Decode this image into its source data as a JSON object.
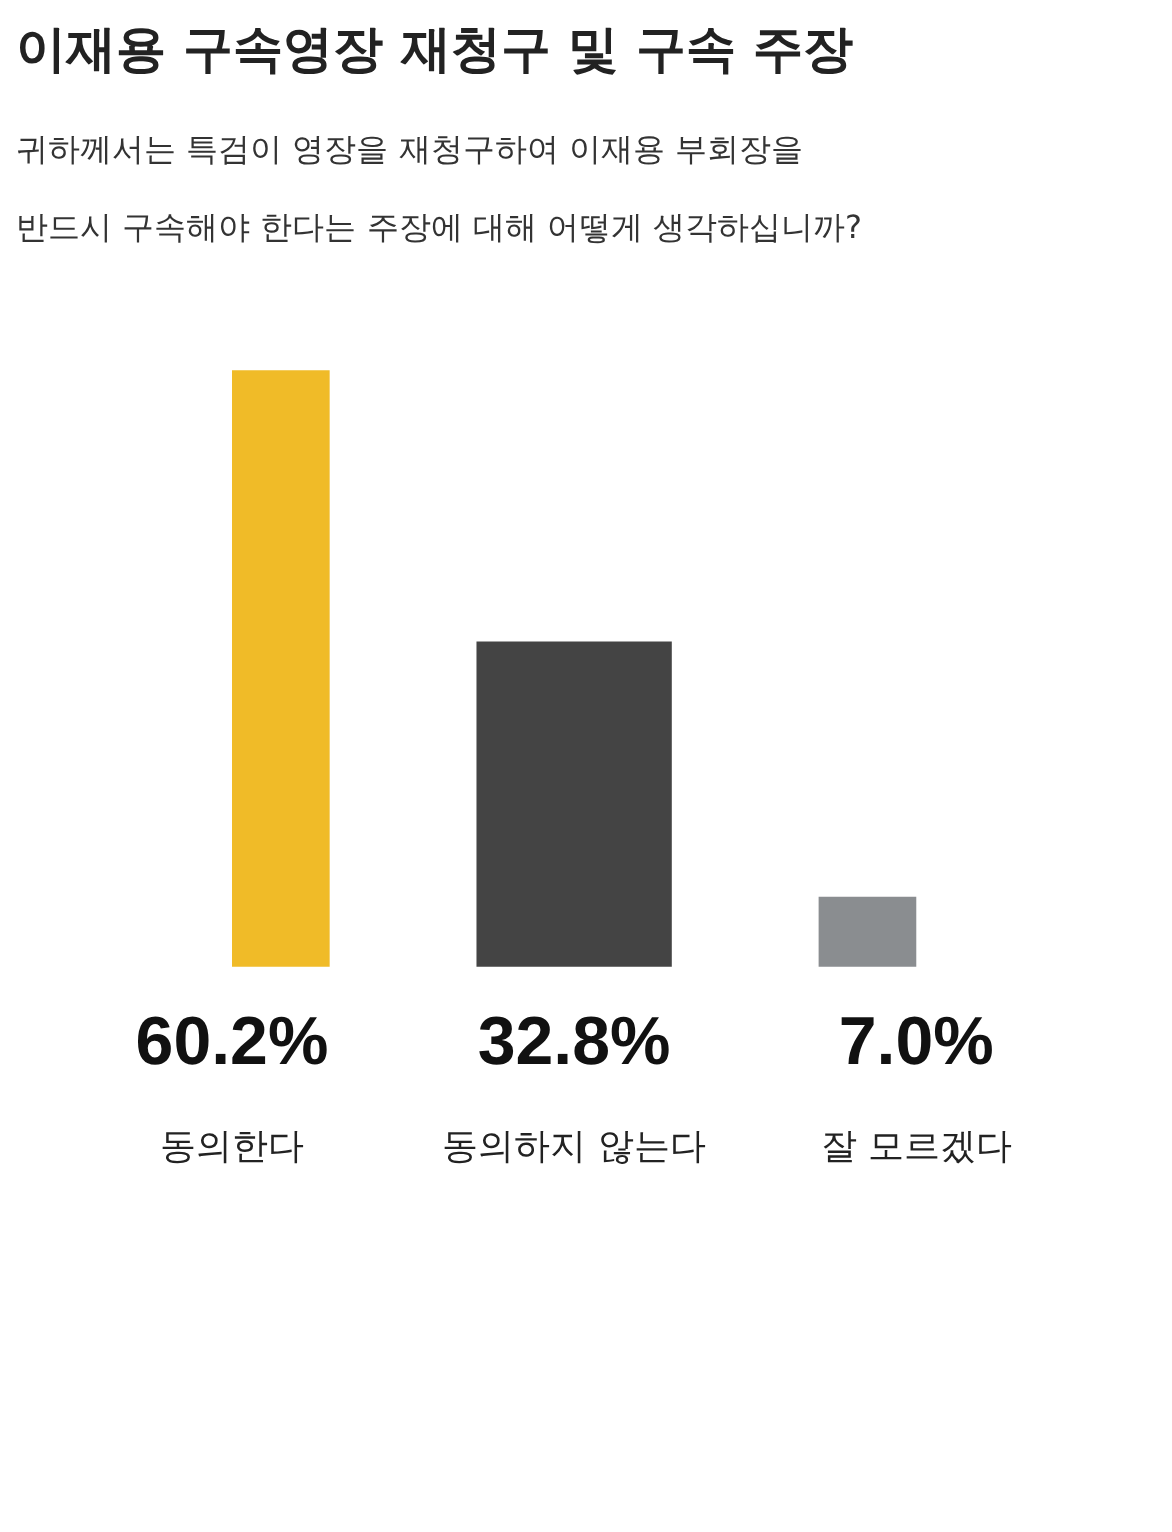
{
  "chart_data": {
    "type": "bar",
    "title": "이재용 구속영장 재청구 및 구속 주장",
    "subtitle": "귀하께서는 특검이 영장을 재청구하여 이재용 부회장을\n반드시 구속해야 한다는 주장에 대해 어떻게 생각하십니까?",
    "categories": [
      "동의한다",
      "동의하지 않는다",
      "잘 모르겠다"
    ],
    "values": [
      60.2,
      32.8,
      7.0
    ],
    "colors": [
      "#f0bb28",
      "#444444",
      "#8a8d90"
    ],
    "value_labels": [
      "60.2%",
      "32.8%",
      "7.0%"
    ]
  }
}
